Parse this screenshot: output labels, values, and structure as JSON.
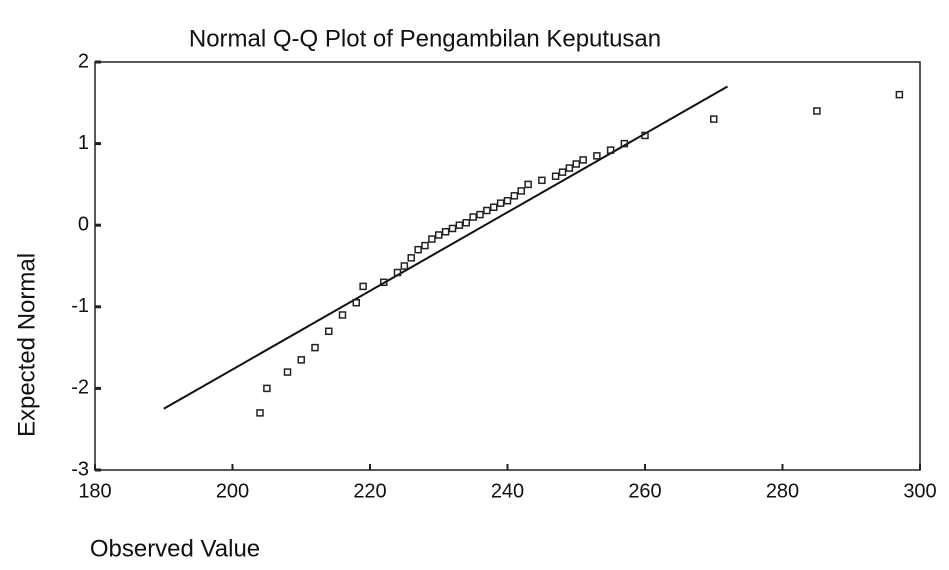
{
  "chart_data": {
    "type": "scatter",
    "title": "Normal Q-Q Plot of Pengambilan Keputusan",
    "x_label": "Observed Value",
    "y_label": "Expected Normal",
    "xlim": [
      180,
      300
    ],
    "xticks": [
      180,
      200,
      220,
      240,
      260,
      280,
      300
    ],
    "ylim": [
      -3,
      2
    ],
    "yticks": [
      -3,
      -2,
      -1,
      0,
      1,
      2
    ],
    "color": "#222222",
    "x": [
      204,
      205,
      208,
      210,
      212,
      214,
      216,
      218,
      219,
      222,
      224,
      225,
      226,
      227,
      228,
      229,
      230,
      231,
      232,
      233,
      234,
      235,
      236,
      237,
      238,
      239,
      240,
      241,
      242,
      243,
      245,
      247,
      248,
      249,
      250,
      251,
      253,
      255,
      257,
      260,
      270,
      285,
      297
    ],
    "values": [
      -2.3,
      -2.0,
      -1.8,
      -1.65,
      -1.5,
      -1.3,
      -1.1,
      -0.95,
      -0.75,
      -0.7,
      -0.58,
      -0.5,
      -0.4,
      -0.3,
      -0.25,
      -0.17,
      -0.12,
      -0.08,
      -0.04,
      0.0,
      0.03,
      0.1,
      0.13,
      0.18,
      0.22,
      0.27,
      0.3,
      0.36,
      0.42,
      0.5,
      0.55,
      0.6,
      0.65,
      0.7,
      0.75,
      0.8,
      0.85,
      0.92,
      1.0,
      1.1,
      1.3,
      1.4,
      1.6
    ],
    "reference_line": {
      "x": [
        190,
        272
      ],
      "values": [
        -2.25,
        1.7
      ]
    }
  }
}
